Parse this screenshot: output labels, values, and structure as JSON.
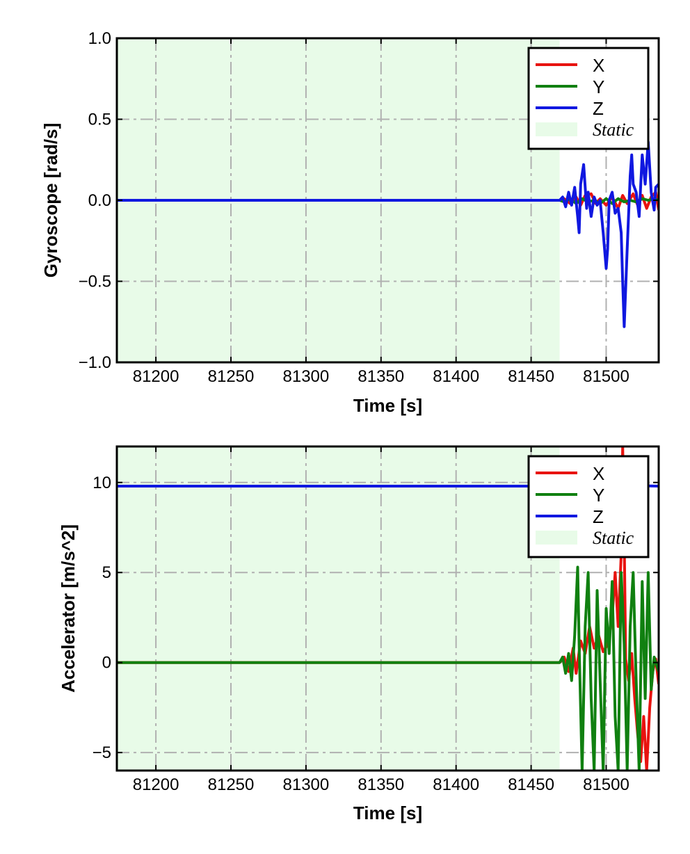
{
  "chart_data": [
    {
      "type": "line",
      "title": "",
      "xlabel": "Time [s]",
      "ylabel": "Gyroscope [rad/s]",
      "xlim": [
        81174,
        81535
      ],
      "ylim": [
        -1.0,
        1.0
      ],
      "xticks": [
        81200,
        81250,
        81300,
        81350,
        81400,
        81450,
        81500
      ],
      "xtick_labels": [
        "81200",
        "81250",
        "81300",
        "81350",
        "81400",
        "81450",
        "81500"
      ],
      "yticks": [
        -1.0,
        -0.5,
        0.0,
        0.5,
        1.0
      ],
      "ytick_labels": [
        "−1.0",
        "−0.5",
        "0.0",
        "0.5",
        "1.0"
      ],
      "grid": true,
      "legend_position": "top-right",
      "static_span": [
        81174,
        81469
      ],
      "series": [
        {
          "name": "X",
          "color": "#e8130f",
          "x": [
            81174,
            81469,
            81472,
            81476,
            81480,
            81483,
            81486,
            81490,
            81493,
            81496,
            81500,
            81504,
            81508,
            81511,
            81514,
            81518,
            81521,
            81524,
            81527,
            81530,
            81533,
            81535
          ],
          "y": [
            0,
            0,
            0.01,
            -0.02,
            0.02,
            -0.03,
            0.03,
            0.04,
            -0.02,
            0.01,
            -0.03,
            0.02,
            -0.05,
            0.03,
            -0.02,
            0.04,
            -0.03,
            0.03,
            -0.05,
            0.02,
            0.05,
            -0.06
          ]
        },
        {
          "name": "Y",
          "color": "#108010",
          "x": [
            81174,
            81469,
            81472,
            81476,
            81480,
            81484,
            81488,
            81492,
            81496,
            81500,
            81504,
            81508,
            81512,
            81516,
            81520,
            81524,
            81528,
            81532,
            81535
          ],
          "y": [
            0,
            0,
            -0.01,
            0.01,
            -0.02,
            0.01,
            -0.01,
            0.0,
            -0.02,
            0.01,
            -0.02,
            0.01,
            -0.01,
            0.0,
            -0.01,
            0.01,
            0.0,
            0.01,
            0.0
          ]
        },
        {
          "name": "Z",
          "color": "#1018e0",
          "x": [
            81174,
            81469,
            81471,
            81473,
            81475,
            81477,
            81479,
            81481,
            81482,
            81483,
            81485,
            81487,
            81488,
            81490,
            81492,
            81494,
            81496,
            81498,
            81500,
            81501,
            81502,
            81504,
            81506,
            81508,
            81510,
            81511,
            81512,
            81514,
            81516,
            81517,
            81518,
            81520,
            81522,
            81524,
            81526,
            81528,
            81530,
            81532,
            81533,
            81535
          ],
          "y": [
            0,
            0,
            0.02,
            -0.04,
            0.05,
            -0.03,
            0.08,
            -0.1,
            -0.2,
            0.1,
            0.22,
            -0.05,
            0.05,
            -0.1,
            0.02,
            -0.03,
            0.0,
            -0.2,
            -0.42,
            -0.3,
            0.0,
            0.05,
            -0.08,
            -0.05,
            -0.2,
            -0.5,
            -0.78,
            -0.3,
            0.15,
            0.28,
            0.1,
            0.05,
            -0.1,
            0.28,
            0.1,
            0.36,
            0.05,
            -0.06,
            0.08,
            0.1
          ]
        }
      ],
      "legend_static_label": "Static",
      "static_color": "#e8fbe8"
    },
    {
      "type": "line",
      "title": "",
      "xlabel": "Time [s]",
      "ylabel": "Accelerator [m/s^2]",
      "xlim": [
        81174,
        81535
      ],
      "ylim": [
        -6.0,
        12.0
      ],
      "xticks": [
        81200,
        81250,
        81300,
        81350,
        81400,
        81450,
        81500
      ],
      "xtick_labels": [
        "81200",
        "81250",
        "81300",
        "81350",
        "81400",
        "81450",
        "81500"
      ],
      "yticks": [
        -5,
        0,
        5,
        10
      ],
      "ytick_labels": [
        "−5",
        "0",
        "5",
        "10"
      ],
      "grid": true,
      "legend_position": "top-right",
      "static_span": [
        81174,
        81469
      ],
      "series": [
        {
          "name": "X",
          "color": "#e8130f",
          "x": [
            81174,
            81469,
            81472,
            81475,
            81478,
            81480,
            81483,
            81486,
            81489,
            81492,
            81495,
            81498,
            81501,
            81504,
            81506,
            81508,
            81510,
            81511,
            81512,
            81513,
            81515,
            81517,
            81519,
            81521,
            81523,
            81525,
            81527,
            81529,
            81531,
            81533,
            81535
          ],
          "y": [
            0,
            0,
            0.3,
            -0.5,
            0.8,
            -0.6,
            1.2,
            0.5,
            2.0,
            0.8,
            1.5,
            0.6,
            1.0,
            2.5,
            5.0,
            2.0,
            6.0,
            12.0,
            7.0,
            0.2,
            -1.0,
            0.5,
            -2.0,
            -4.0,
            -5.5,
            -3.0,
            -6.0,
            -2.5,
            -0.5,
            0.2,
            -1.2
          ]
        },
        {
          "name": "Y",
          "color": "#108010",
          "x": [
            81174,
            81469,
            81471,
            81473,
            81475,
            81477,
            81479,
            81481,
            81482,
            81484,
            81486,
            81488,
            81490,
            81492,
            81494,
            81496,
            81498,
            81500,
            81502,
            81504,
            81506,
            81508,
            81510,
            81512,
            81514,
            81516,
            81518,
            81520,
            81522,
            81524,
            81526,
            81528,
            81530,
            81532,
            81535
          ],
          "y": [
            0,
            0,
            0.3,
            -0.6,
            0.5,
            -1.0,
            1.5,
            5.3,
            1.0,
            -6.0,
            2.0,
            5.0,
            -2.0,
            -6.0,
            4.0,
            -1.0,
            -6.0,
            3.0,
            0.5,
            4.5,
            -3.0,
            -6.0,
            5.0,
            1.0,
            -6.0,
            2.0,
            5.0,
            -1.0,
            -6.0,
            4.5,
            -2.0,
            5.0,
            -1.5,
            0.3,
            -0.5
          ]
        },
        {
          "name": "Z",
          "color": "#1018e0",
          "x": [
            81174,
            81250,
            81350,
            81469,
            81470,
            81535
          ],
          "y": [
            9.8,
            9.8,
            9.8,
            9.8,
            9.9,
            9.8
          ]
        }
      ],
      "legend_static_label": "Static",
      "static_color": "#e8fbe8"
    }
  ]
}
